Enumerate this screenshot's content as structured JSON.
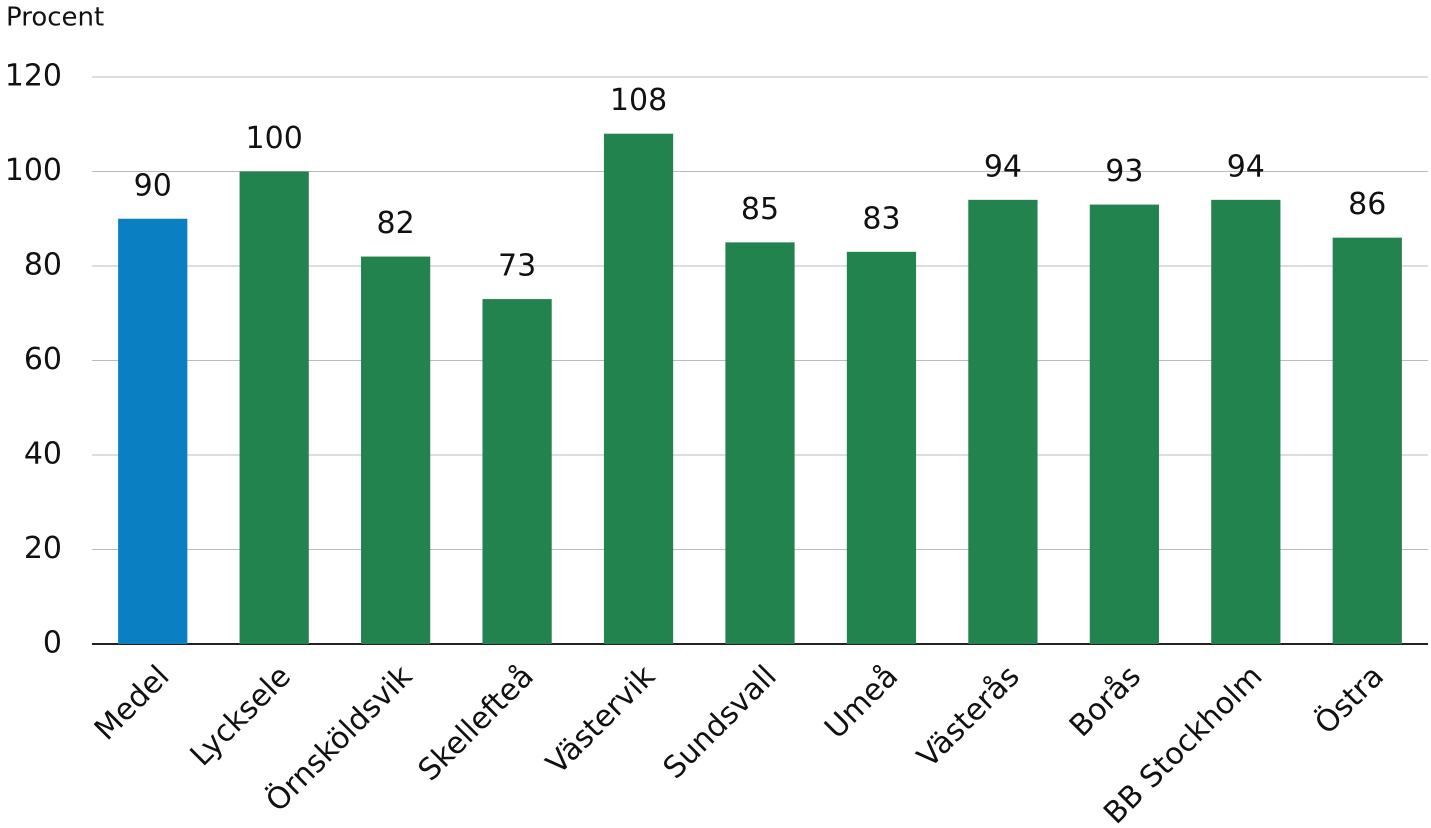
{
  "chart_data": {
    "type": "bar",
    "y_label": "Procent",
    "categories": [
      "Medel",
      "Lycksele",
      "Örnsköldsvik",
      "Skellefteå",
      "Västervik",
      "Sundsvall",
      "Umeå",
      "Västerås",
      "Borås",
      "BB Stockholm",
      "Östra"
    ],
    "values": [
      90,
      100,
      82,
      73,
      108,
      85,
      83,
      94,
      93,
      94,
      86
    ],
    "colors": [
      "#0a7fc1",
      "#23834f",
      "#23834f",
      "#23834f",
      "#23834f",
      "#23834f",
      "#23834f",
      "#23834f",
      "#23834f",
      "#23834f",
      "#23834f"
    ],
    "ylim": [
      0,
      120
    ],
    "yticks": [
      0,
      20,
      40,
      60,
      80,
      100,
      120
    ],
    "grid": true
  }
}
